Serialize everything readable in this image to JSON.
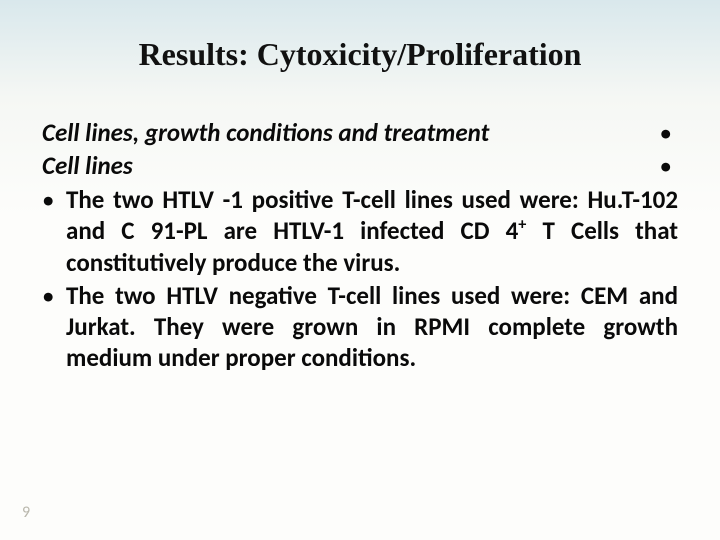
{
  "slide": {
    "title": "Results: Cytoxicity/Proliferation",
    "title_fontsize": 32,
    "title_color": "#111111",
    "heading1": "Cell lines, growth conditions and treatment",
    "heading2": "Cell lines",
    "heading_bullet_glyph": "•",
    "body_fontsize": 25,
    "body_color": "#0a0a0a",
    "bullets": [
      {
        "marker": "•",
        "pre": "The two HTLV -1 positive T-cell lines used were: Hu.T-102 and C 91-PL are HTLV-1 infected CD 4",
        "sup": "+",
        "post": " T Cells that constitutively produce the virus."
      },
      {
        "marker": "•",
        "pre": "The two HTLV negative T-cell lines used were: CEM and Jurkat. They were grown in RPMI complete growth medium under proper conditions.",
        "sup": "",
        "post": ""
      }
    ],
    "page_number": "9",
    "page_number_color": "#b9b7ac",
    "page_number_fontsize": 16,
    "background_top": "#d9e8ec",
    "background_bottom": "#fdfdfb"
  }
}
